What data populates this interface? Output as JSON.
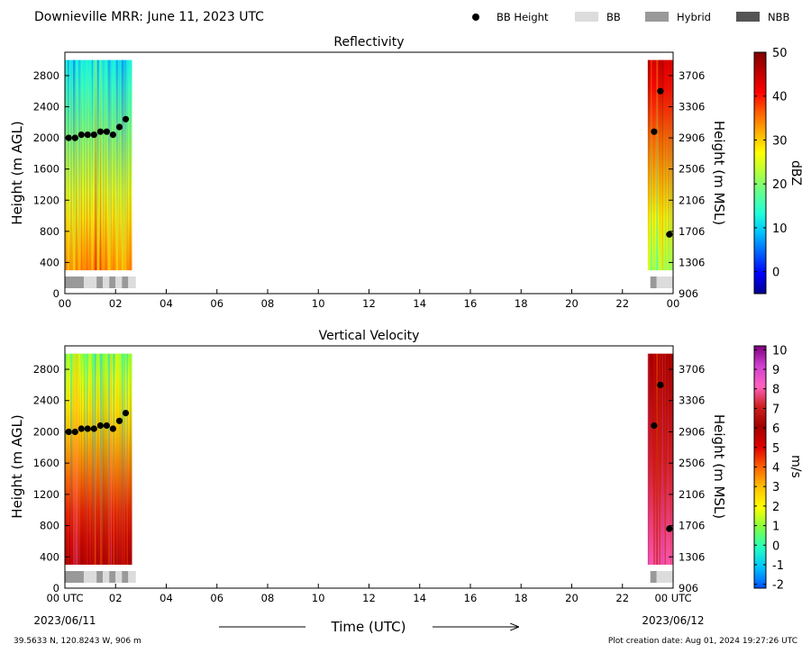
{
  "header": {
    "title": "Downieville MRR:  June 11, 2023 UTC",
    "legend": [
      {
        "label": "BB Height",
        "kind": "dot",
        "color": "#000000"
      },
      {
        "label": "BB",
        "kind": "box",
        "color": "#dcdcdc"
      },
      {
        "label": "Hybrid",
        "kind": "box",
        "color": "#999999"
      },
      {
        "label": "NBB",
        "kind": "box",
        "color": "#555555"
      }
    ]
  },
  "footer": {
    "location": "39.5633 N, 120.8243 W, 906 m",
    "created": "Plot creation date: Aug 01, 2024 19:27:26 UTC",
    "xlabel": "Time (UTC)",
    "start_date": "2023/06/11",
    "end_date": "2023/06/12"
  },
  "chart_data": [
    {
      "type": "heatmap",
      "title": "Reflectivity",
      "ylabel": "Height (m AGL)",
      "y2label": "Height (m MSL)",
      "colorbar_label": "dBZ",
      "xlim": [
        0,
        24
      ],
      "ylim": [
        0,
        3100
      ],
      "x_ticks": [
        "00",
        "02",
        "04",
        "06",
        "08",
        "10",
        "12",
        "14",
        "16",
        "18",
        "20",
        "22",
        "00"
      ],
      "y_ticks": [
        0,
        400,
        800,
        1200,
        1600,
        2000,
        2400,
        2800
      ],
      "y2_ticks": [
        906,
        1306,
        1706,
        2106,
        2506,
        2906,
        3306,
        3706
      ],
      "colorbar_ticks": [
        0,
        10,
        20,
        30,
        40,
        50
      ],
      "colorbar_range": [
        -5,
        50
      ],
      "colormap": [
        "#00008f",
        "#0000ff",
        "#0060ff",
        "#00c0ff",
        "#20ffd8",
        "#60ff90",
        "#b0ff40",
        "#ffff00",
        "#ffb000",
        "#ff6000",
        "#ff0000",
        "#c00000",
        "#800000"
      ],
      "data_windows": [
        {
          "x_start": 0.0,
          "x_end": 2.65,
          "y_start": 300,
          "y_end": 3000,
          "level_start": 34,
          "level_end": 12
        },
        {
          "x_start": 23.0,
          "x_end": 24.0,
          "y_start": 300,
          "y_end": 3000,
          "level_start": 22,
          "level_end": 44
        }
      ],
      "bb_height": {
        "x": [
          0.15,
          0.4,
          0.65,
          0.9,
          1.15,
          1.4,
          1.65,
          1.9,
          2.15,
          2.4,
          23.25,
          23.5,
          23.85
        ],
        "y": [
          2000,
          2000,
          2040,
          2040,
          2040,
          2080,
          2080,
          2040,
          2140,
          2240,
          2080,
          2600,
          760
        ]
      },
      "bb_types": [
        {
          "x_start": 0.0,
          "x_end": 0.75,
          "type": "Hybrid"
        },
        {
          "x_start": 0.75,
          "x_end": 1.25,
          "type": "BB"
        },
        {
          "x_start": 1.25,
          "x_end": 1.5,
          "type": "Hybrid"
        },
        {
          "x_start": 1.5,
          "x_end": 1.75,
          "type": "BB"
        },
        {
          "x_start": 1.75,
          "x_end": 2.0,
          "type": "Hybrid"
        },
        {
          "x_start": 2.0,
          "x_end": 2.25,
          "type": "BB"
        },
        {
          "x_start": 2.25,
          "x_end": 2.5,
          "type": "Hybrid"
        },
        {
          "x_start": 2.5,
          "x_end": 2.8,
          "type": "BB"
        },
        {
          "x_start": 23.1,
          "x_end": 23.35,
          "type": "Hybrid"
        },
        {
          "x_start": 23.35,
          "x_end": 24.0,
          "type": "BB"
        }
      ]
    },
    {
      "type": "heatmap",
      "title": "Vertical Velocity",
      "ylabel": "Height (m AGL)",
      "y2label": "Height (m MSL)",
      "colorbar_label": "m/s",
      "xlim": [
        0,
        24
      ],
      "ylim": [
        0,
        3100
      ],
      "x_ticks": [
        "00 UTC",
        "02",
        "04",
        "06",
        "08",
        "10",
        "12",
        "14",
        "16",
        "18",
        "20",
        "22",
        "00 UTC"
      ],
      "y_ticks": [
        0,
        400,
        800,
        1200,
        1600,
        2000,
        2400,
        2800
      ],
      "y2_ticks": [
        906,
        1306,
        1706,
        2106,
        2506,
        2906,
        3306,
        3706
      ],
      "colorbar_ticks": [
        -2,
        -1,
        0,
        1,
        2,
        3,
        4,
        5,
        6,
        7,
        8,
        9,
        10
      ],
      "colorbar_range": [
        -2.2,
        10.2
      ],
      "colormap": [
        "#0050ff",
        "#00c0ff",
        "#20ffc0",
        "#80ff40",
        "#ffff00",
        "#ffc000",
        "#ff6000",
        "#e00000",
        "#a00000",
        "#d02020",
        "#ff60c0",
        "#d040d0",
        "#800080"
      ],
      "data_windows": [
        {
          "x_start": 0.0,
          "x_end": 2.65,
          "y_start": 300,
          "y_end": 3000,
          "level_start": 6,
          "level_end": 1
        },
        {
          "x_start": 23.0,
          "x_end": 24.0,
          "y_start": 300,
          "y_end": 3000,
          "level_start": 8,
          "level_end": 6
        }
      ],
      "bb_height": {
        "x": [
          0.15,
          0.4,
          0.65,
          0.9,
          1.15,
          1.4,
          1.65,
          1.9,
          2.15,
          2.4,
          23.25,
          23.5,
          23.85
        ],
        "y": [
          2000,
          2000,
          2040,
          2040,
          2040,
          2080,
          2080,
          2040,
          2140,
          2240,
          2080,
          2600,
          760
        ]
      },
      "bb_types": [
        {
          "x_start": 0.0,
          "x_end": 0.75,
          "type": "Hybrid"
        },
        {
          "x_start": 0.75,
          "x_end": 1.25,
          "type": "BB"
        },
        {
          "x_start": 1.25,
          "x_end": 1.5,
          "type": "Hybrid"
        },
        {
          "x_start": 1.5,
          "x_end": 1.75,
          "type": "BB"
        },
        {
          "x_start": 1.75,
          "x_end": 2.0,
          "type": "Hybrid"
        },
        {
          "x_start": 2.0,
          "x_end": 2.25,
          "type": "BB"
        },
        {
          "x_start": 2.25,
          "x_end": 2.5,
          "type": "Hybrid"
        },
        {
          "x_start": 2.5,
          "x_end": 2.8,
          "type": "BB"
        },
        {
          "x_start": 23.1,
          "x_end": 23.35,
          "type": "Hybrid"
        },
        {
          "x_start": 23.35,
          "x_end": 24.0,
          "type": "BB"
        }
      ]
    }
  ]
}
